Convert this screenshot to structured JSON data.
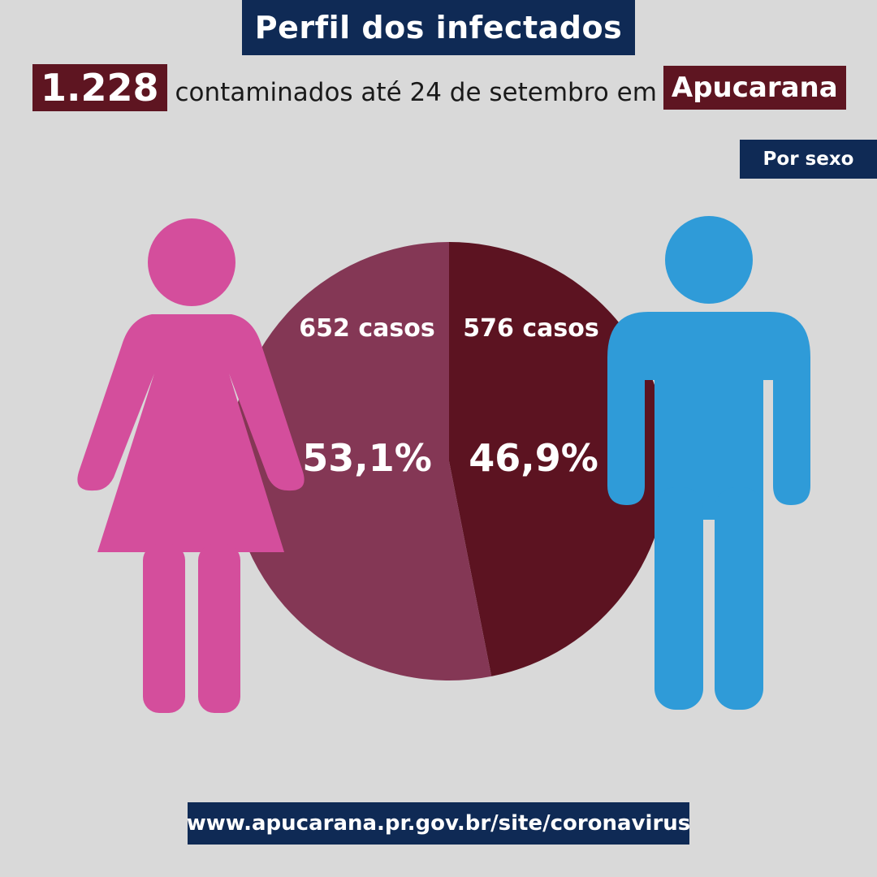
{
  "header": {
    "title": "Perfil dos infectados",
    "total": "1.228",
    "subtitle": "contaminados até 24 de setembro em",
    "city": "Apucarana",
    "section_label": "Por sexo"
  },
  "colors": {
    "navy": "#0f2a55",
    "maroon": "#5e1521",
    "female_slice": "#843755",
    "male_slice": "#5c1321",
    "female_icon": "#d44e9c",
    "male_icon": "#2f9bd8",
    "background": "#d9d9d9"
  },
  "icons": {
    "female": "female-figure-icon",
    "male": "male-figure-icon"
  },
  "chart_data": {
    "type": "pie",
    "categories": [
      "Feminino",
      "Masculino"
    ],
    "values": [
      652,
      576
    ],
    "labels": [
      "652 casos",
      "576 casos"
    ],
    "percent_labels": [
      "53,1%",
      "46,9%"
    ],
    "total": 1228
  },
  "footer": {
    "url": "www.apucarana.pr.gov.br/site/coronavirus"
  }
}
